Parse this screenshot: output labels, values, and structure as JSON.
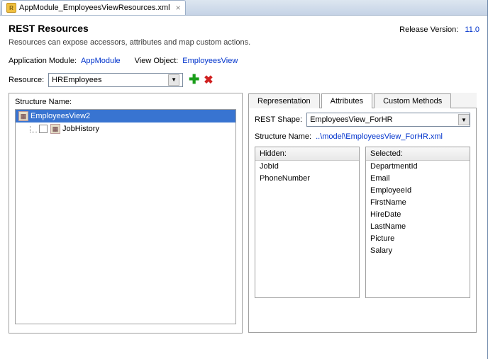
{
  "tab": {
    "title": "AppModule_EmployeesViewResources.xml"
  },
  "header": {
    "title": "REST Resources",
    "version_label": "Release Version:",
    "version_value": "11.0",
    "subtitle": "Resources can expose accessors, attributes and map custom actions."
  },
  "module_row": {
    "app_module_label": "Application Module:",
    "app_module_value": "AppModule",
    "view_object_label": "View Object:",
    "view_object_value": "EmployeesView"
  },
  "resource_row": {
    "label": "Resource:",
    "value": "HREmployees"
  },
  "structure": {
    "label": "Structure Name:",
    "root": "EmployeesView2",
    "child": "JobHistory"
  },
  "sub_tabs": {
    "representation": "Representation",
    "attributes": "Attributes",
    "custom_methods": "Custom Methods",
    "active": "attributes"
  },
  "rest_shape": {
    "label": "REST Shape:",
    "value": "EmployeesView_ForHR"
  },
  "struct_link": {
    "label": "Structure Name:",
    "value": "..\\model\\EmployeesView_ForHR.xml"
  },
  "lists": {
    "hidden_label": "Hidden:",
    "hidden": [
      "JobId",
      "PhoneNumber"
    ],
    "selected_label": "Selected:",
    "selected": [
      "DepartmentId",
      "Email",
      "EmployeeId",
      "FirstName",
      "HireDate",
      "LastName",
      "Picture",
      "Salary"
    ]
  },
  "colors": {
    "link": "#0033cc",
    "selection_bg": "#3874d1",
    "selection_fg": "#ffffff"
  }
}
